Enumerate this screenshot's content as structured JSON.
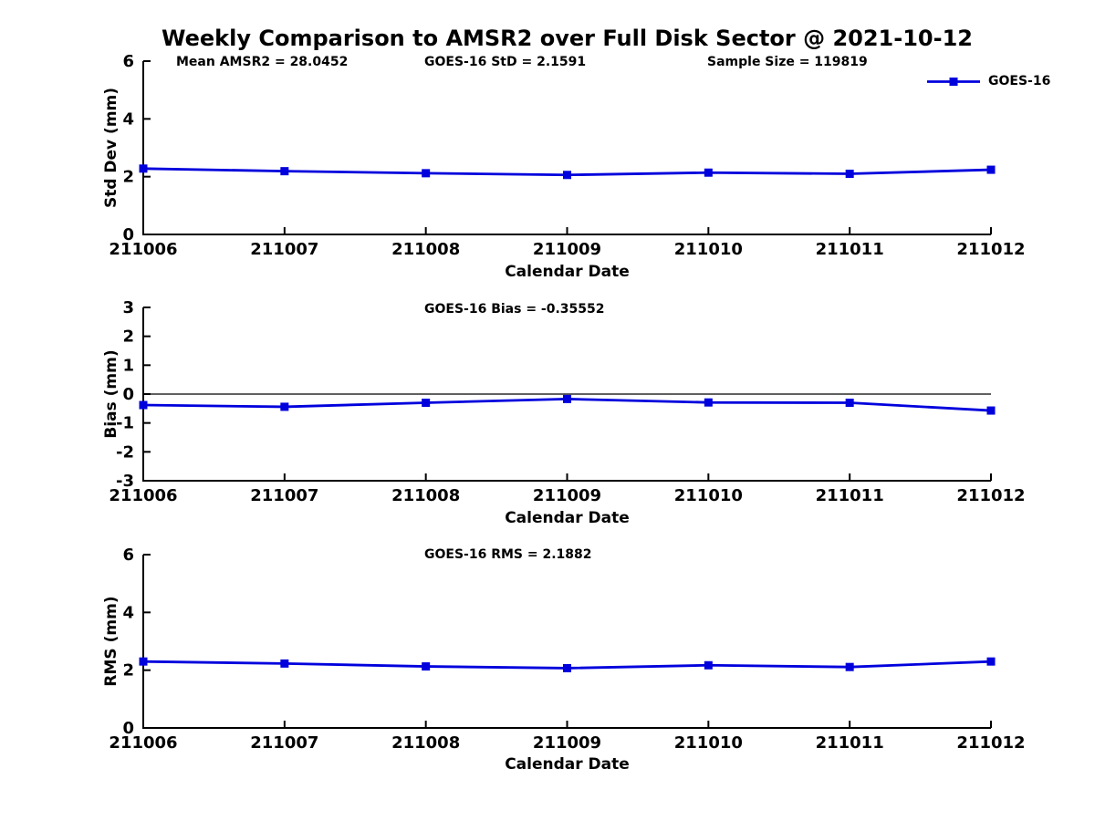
{
  "title": "Weekly Comparison to AMSR2 over Full Disk Sector @ 2021-10-12",
  "legend": {
    "label": "GOES-16",
    "position": "top-right"
  },
  "colors": {
    "line": "#0000dd",
    "axis": "#000000"
  },
  "chart_data": [
    {
      "type": "line",
      "id": "std-dev",
      "annotations": [
        "Mean AMSR2 = 28.0452",
        "GOES-16 StD = 2.1591",
        "Sample Size = 119819"
      ],
      "xlabel": "Calendar Date",
      "ylabel": "Std Dev (mm)",
      "categories": [
        "211006",
        "211007",
        "211008",
        "211009",
        "211010",
        "211011",
        "211012"
      ],
      "series": [
        {
          "name": "GOES-16",
          "values": [
            2.28,
            2.19,
            2.12,
            2.06,
            2.14,
            2.1,
            2.24
          ]
        }
      ],
      "ylim": [
        0,
        6
      ],
      "yticks": [
        0,
        2,
        4,
        6
      ],
      "zero_line": false,
      "grid": false
    },
    {
      "type": "line",
      "id": "bias",
      "annotations": [
        "GOES-16 Bias  = -0.35552"
      ],
      "xlabel": "Calendar Date",
      "ylabel": "Bias (mm)",
      "categories": [
        "211006",
        "211007",
        "211008",
        "211009",
        "211010",
        "211011",
        "211012"
      ],
      "series": [
        {
          "name": "GOES-16",
          "values": [
            -0.38,
            -0.44,
            -0.3,
            -0.17,
            -0.29,
            -0.3,
            -0.57
          ]
        }
      ],
      "ylim": [
        -3,
        3
      ],
      "yticks": [
        -3,
        -2,
        -1,
        0,
        1,
        2,
        3
      ],
      "zero_line": true,
      "grid": false
    },
    {
      "type": "line",
      "id": "rms",
      "annotations": [
        "GOES-16 RMS = 2.1882"
      ],
      "xlabel": "Calendar Date",
      "ylabel": "RMS (mm)",
      "categories": [
        "211006",
        "211007",
        "211008",
        "211009",
        "211010",
        "211011",
        "211012"
      ],
      "series": [
        {
          "name": "GOES-16",
          "values": [
            2.3,
            2.23,
            2.13,
            2.07,
            2.17,
            2.11,
            2.3
          ]
        }
      ],
      "ylim": [
        0,
        6
      ],
      "yticks": [
        0,
        2,
        4,
        6
      ],
      "zero_line": false,
      "grid": false
    }
  ]
}
